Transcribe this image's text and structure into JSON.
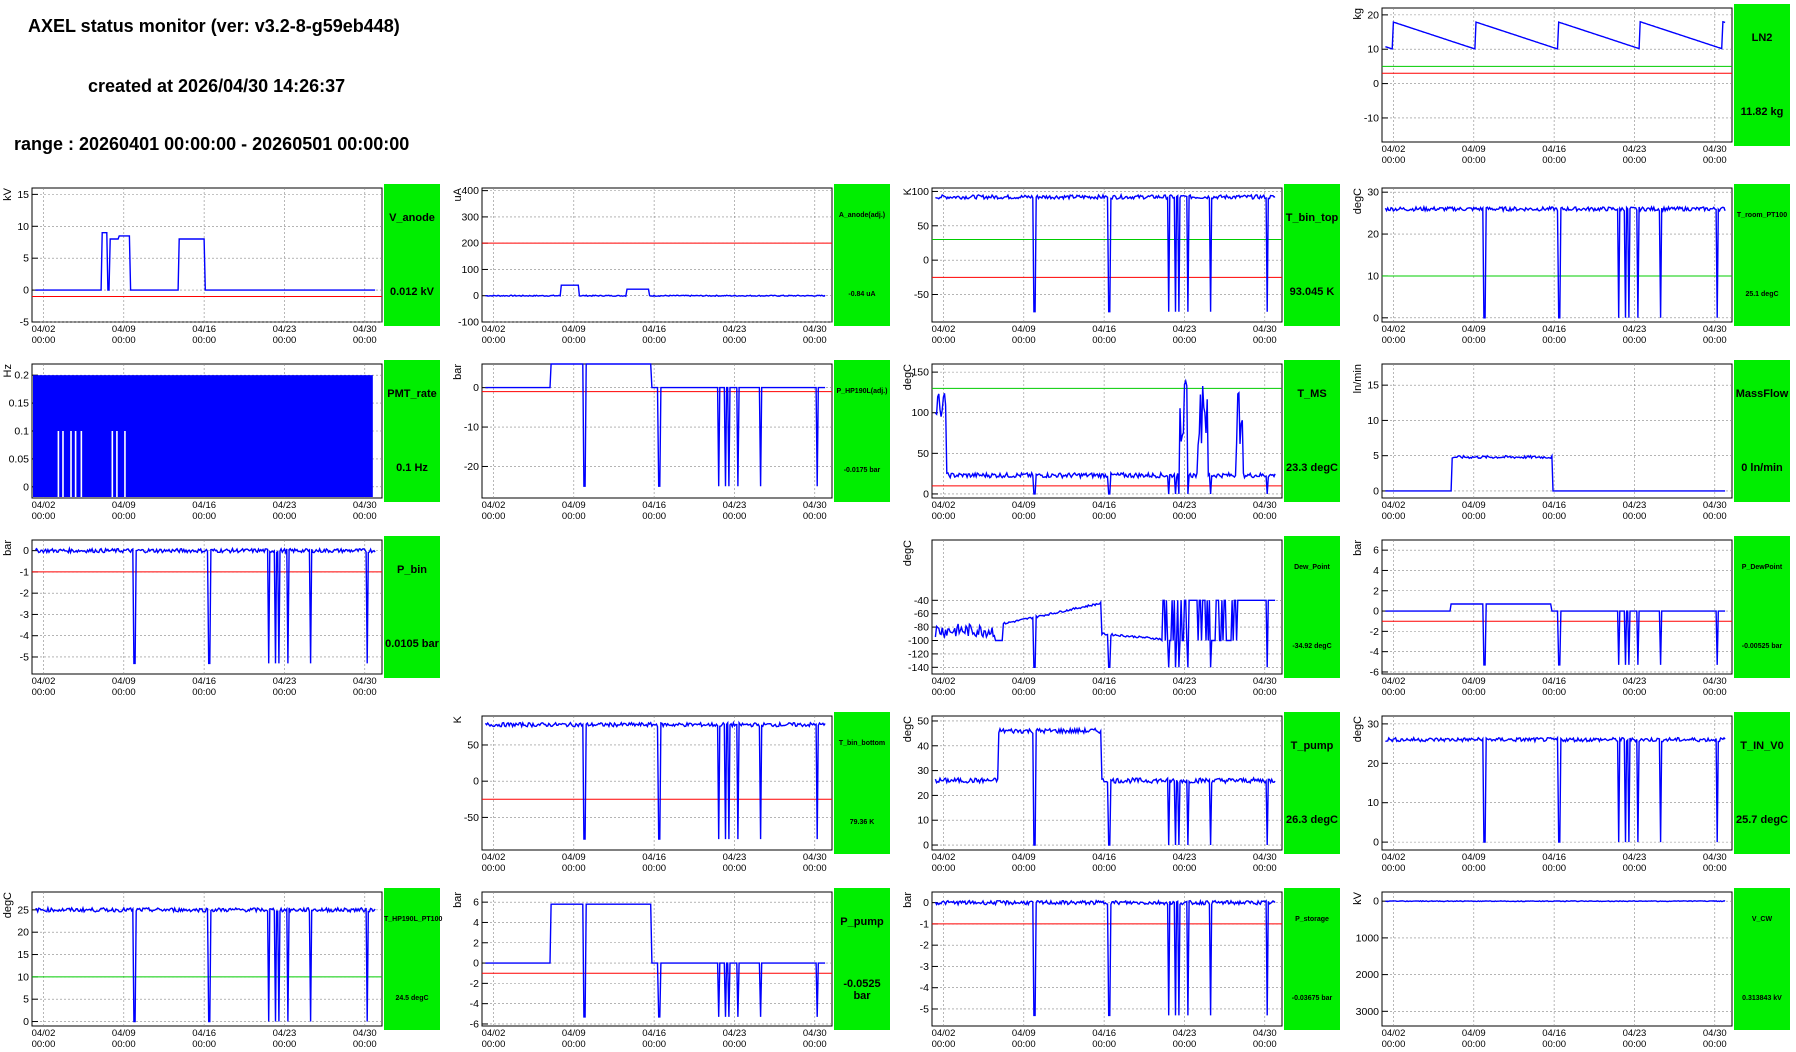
{
  "header": {
    "title": "AXEL status monitor (ver: v3.2-8-g59eb448)",
    "created": "created at 2026/04/30 14:26:37",
    "range": "range : 20260401 00:00:00 - 20260501 00:00:00"
  },
  "x_ticks": [
    "04/02",
    "04/09",
    "04/16",
    "04/23",
    "04/30"
  ],
  "x_tick_time": "00:00",
  "colors": {
    "data": "#0000ff",
    "lower_limit": "#ff0000",
    "upper_limit": "#00cc00",
    "badge": "#00ee00"
  },
  "panels": [
    {
      "id": "LN2",
      "name": "LN2",
      "value": "11.82 kg",
      "unit": "kg",
      "ylim": [
        -17,
        22
      ],
      "yticks": [
        -10,
        0,
        10,
        20
      ],
      "red": 3,
      "green": 5,
      "kind": "sawtooth",
      "base": 12,
      "label_size": "normal"
    },
    {
      "id": "V_anode",
      "name": "V_anode",
      "value": "0.012 kV",
      "unit": "kV",
      "ylim": [
        -5,
        16
      ],
      "yticks": [
        -5,
        0,
        5,
        10,
        15
      ],
      "red": -1,
      "kind": "anode",
      "base": 0,
      "label_size": "normal"
    },
    {
      "id": "A_anode",
      "name": "A_anode(adj.)",
      "value": "-0.84 uA",
      "unit": "uA",
      "ylim": [
        -100,
        410
      ],
      "yticks": [
        -100,
        0,
        100,
        200,
        300,
        400
      ],
      "red": 200,
      "kind": "current",
      "base": 0,
      "label_size": "small"
    },
    {
      "id": "T_bin_top",
      "name": "T_bin_top",
      "value": "93.045 K",
      "unit": "K",
      "ylim": [
        -90,
        105
      ],
      "yticks": [
        -50,
        0,
        50,
        100
      ],
      "red": -25,
      "green": 30,
      "kind": "dropouts",
      "base": 92,
      "low": -75,
      "label_size": "normal"
    },
    {
      "id": "T_room_PT100",
      "name": "T_room_PT100",
      "value": "25.1 degC",
      "unit": "degC",
      "ylim": [
        -1,
        31
      ],
      "yticks": [
        0,
        10,
        20,
        30
      ],
      "green": 10,
      "kind": "dropouts",
      "base": 26,
      "low": 0,
      "label_size": "small"
    },
    {
      "id": "PMT_rate",
      "name": "PMT_rate",
      "value": "0.1 Hz",
      "unit": "Hz",
      "ylim": [
        -0.02,
        0.22
      ],
      "yticks": [
        0,
        0.05,
        0.1,
        0.15,
        0.2
      ],
      "kind": "block",
      "base": 0.2,
      "label_size": "normal"
    },
    {
      "id": "P_HP190L",
      "name": "P_HP190L(adj.)",
      "value": "-0.0175 bar",
      "unit": "bar",
      "ylim": [
        -28,
        6
      ],
      "yticks": [
        -20,
        -10,
        0
      ],
      "red": -1,
      "kind": "step_drop",
      "base": 0,
      "low": -25,
      "label_size": "small"
    },
    {
      "id": "T_MS",
      "name": "T_MS",
      "value": "23.3 degC",
      "unit": "degC",
      "ylim": [
        -5,
        160
      ],
      "yticks": [
        0,
        50,
        100,
        150
      ],
      "red": 10,
      "green": 130,
      "kind": "spiky",
      "base": 23,
      "low": 0,
      "label_size": "normal"
    },
    {
      "id": "MassFlow",
      "name": "MassFlow",
      "value": "0 ln/min",
      "unit": "ln/min",
      "ylim": [
        -1,
        18
      ],
      "yticks": [
        0,
        5,
        10,
        15
      ],
      "kind": "flow",
      "base": 0,
      "label_size": "normal"
    },
    {
      "id": "P_bin",
      "name": "P_bin",
      "value": "0.0105 bar",
      "unit": "bar",
      "ylim": [
        -5.8,
        0.5
      ],
      "yticks": [
        -5,
        -4,
        -3,
        -2,
        -1,
        0
      ],
      "red": -1,
      "kind": "dropouts",
      "base": 0,
      "low": -5.3,
      "label_size": "normal"
    },
    {
      "id": "Dew_Point",
      "name": "Dew_Point",
      "value": "-34.92 degC",
      "unit": "degC",
      "ylim": [
        -150,
        50
      ],
      "yticks": [
        -140,
        -120,
        -100,
        -80,
        -60,
        -40
      ],
      "kind": "dew",
      "base": -60,
      "low": -140,
      "label_size": "small"
    },
    {
      "id": "P_DewPoint",
      "name": "P_DewPoint",
      "value": "-0.00525 bar",
      "unit": "bar",
      "ylim": [
        -6.2,
        7
      ],
      "yticks": [
        -6,
        -4,
        -2,
        0,
        2,
        4,
        6
      ],
      "red": -1,
      "kind": "dewpress",
      "base": 0,
      "low": -5.3,
      "label_size": "small"
    },
    {
      "id": "T_bin_bottom",
      "name": "T_bin_bottom",
      "value": "79.36 K",
      "unit": "K",
      "ylim": [
        -95,
        90
      ],
      "yticks": [
        -50,
        0,
        50
      ],
      "red": -25,
      "kind": "dropouts",
      "base": 78,
      "low": -80,
      "label_size": "small"
    },
    {
      "id": "T_pump",
      "name": "T_pump",
      "value": "26.3 degC",
      "unit": "degC",
      "ylim": [
        -2,
        52
      ],
      "yticks": [
        0,
        10,
        20,
        30,
        40,
        50
      ],
      "kind": "pump",
      "base": 26,
      "low": 0,
      "label_size": "normal"
    },
    {
      "id": "T_IN_V0",
      "name": "T_IN_V0",
      "value": "25.7 degC",
      "unit": "degC",
      "ylim": [
        -2,
        32
      ],
      "yticks": [
        0,
        10,
        20,
        30
      ],
      "kind": "dropouts",
      "base": 26,
      "low": 0,
      "label_size": "normal"
    },
    {
      "id": "T_HP190L_PT100",
      "name": "T_HP190L_PT100",
      "value": "24.5 degC",
      "unit": "degC",
      "ylim": [
        -1,
        29
      ],
      "yticks": [
        0,
        5,
        10,
        15,
        20,
        25
      ],
      "green": 10,
      "kind": "dropouts",
      "base": 25,
      "low": 0,
      "label_size": "small"
    },
    {
      "id": "P_pump",
      "name": "P_pump",
      "value": "-0.0525 bar",
      "unit": "bar",
      "ylim": [
        -6.2,
        7
      ],
      "yticks": [
        -6,
        -4,
        -2,
        0,
        2,
        4,
        6
      ],
      "red": -1,
      "kind": "step_drop",
      "base": 0,
      "low": -5.3,
      "high": 5.8,
      "label_size": "normal"
    },
    {
      "id": "P_storage",
      "name": "P_storage",
      "value": "-0.03675 bar",
      "unit": "bar",
      "ylim": [
        -5.8,
        0.5
      ],
      "yticks": [
        -5,
        -4,
        -3,
        -2,
        -1,
        0
      ],
      "red": -1,
      "kind": "dropouts",
      "base": 0,
      "low": -5.3,
      "label_size": "small"
    },
    {
      "id": "V_CW",
      "name": "V_CW",
      "value": "0.313843 kV",
      "unit": "kV",
      "ylim": [
        3400,
        -250
      ],
      "yticks": [
        0,
        1000,
        2000,
        3000
      ],
      "kind": "vcw",
      "base": 0,
      "label_size": "small"
    }
  ]
}
